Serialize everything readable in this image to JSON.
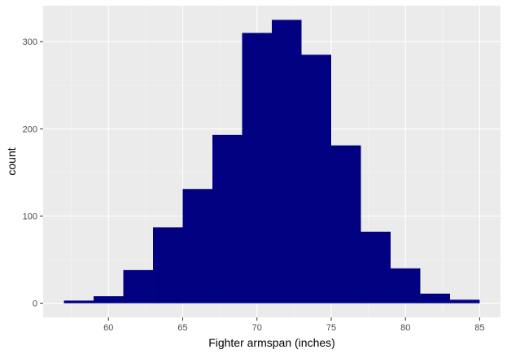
{
  "chart_data": {
    "type": "bar",
    "subtype": "histogram",
    "title": "",
    "xlabel": "Fighter armspan (inches)",
    "ylabel": "count",
    "bin_width": 2,
    "bins": [
      {
        "x0": 57,
        "x1": 59,
        "count": 3
      },
      {
        "x0": 59,
        "x1": 61,
        "count": 8
      },
      {
        "x0": 61,
        "x1": 63,
        "count": 38
      },
      {
        "x0": 63,
        "x1": 65,
        "count": 87
      },
      {
        "x0": 65,
        "x1": 67,
        "count": 131
      },
      {
        "x0": 67,
        "x1": 69,
        "count": 193
      },
      {
        "x0": 69,
        "x1": 71,
        "count": 310
      },
      {
        "x0": 71,
        "x1": 73,
        "count": 325
      },
      {
        "x0": 73,
        "x1": 75,
        "count": 285
      },
      {
        "x0": 75,
        "x1": 77,
        "count": 181
      },
      {
        "x0": 77,
        "x1": 79,
        "count": 82
      },
      {
        "x0": 79,
        "x1": 81,
        "count": 40
      },
      {
        "x0": 81,
        "x1": 83,
        "count": 11
      },
      {
        "x0": 83,
        "x1": 85,
        "count": 4
      }
    ],
    "xlim": [
      55.6,
      86.4
    ],
    "ylim": [
      -16.25,
      341.25
    ],
    "xticks": [
      60,
      65,
      70,
      75,
      80,
      85
    ],
    "yticks": [
      0,
      100,
      200,
      300
    ],
    "xtick_labels": [
      "60",
      "65",
      "70",
      "75",
      "80",
      "85"
    ],
    "ytick_labels": [
      "0",
      "100",
      "200",
      "300"
    ],
    "grid": true,
    "colors": {
      "bar": "#000080",
      "panel": "#ebebeb",
      "grid_major": "#ffffff",
      "grid_minor": "#f5f5f5",
      "tick_text": "#4d4d4d",
      "tick_mark": "#333333"
    }
  }
}
